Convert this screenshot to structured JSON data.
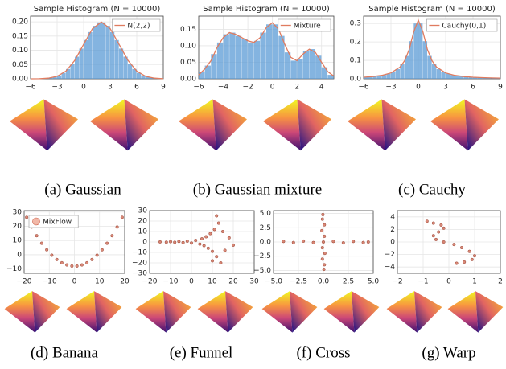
{
  "captions": [
    "(a) Gaussian",
    "(b) Gaussian mixture",
    "(c) Cauchy",
    "(d) Banana",
    "(e) Funnel",
    "(f) Cross",
    "(g) Warp"
  ],
  "chart_data": [
    {
      "type": "histogram",
      "title": "Sample Histogram (N = 10000)",
      "color": "#5b9bd5",
      "bins": [
        -4.5,
        -4,
        -3.5,
        -3,
        -2.5,
        -2,
        -1.5,
        -1,
        -0.5,
        0,
        0.5,
        1,
        1.5,
        2,
        2.5,
        3,
        3.5,
        4,
        4.5,
        5,
        5.5,
        6,
        6.5,
        7,
        7.5,
        8,
        8.5
      ],
      "values": [
        0.0015,
        0.0032,
        0.0063,
        0.0119,
        0.0208,
        0.0343,
        0.0533,
        0.0775,
        0.106,
        0.136,
        0.164,
        0.186,
        0.198,
        0.198,
        0.186,
        0.164,
        0.136,
        0.106,
        0.0775,
        0.0533,
        0.0343,
        0.0208,
        0.0119,
        0.0063,
        0.0032,
        0.0015
      ],
      "curve": {
        "name": "N(2,2)",
        "color": "#e07b5f",
        "x": [
          -6,
          -5,
          -4,
          -3,
          -2,
          -1,
          0,
          1,
          2,
          3,
          4,
          5,
          6,
          7,
          8,
          9
        ],
        "values": [
          0.0,
          0.0004,
          0.0022,
          0.0088,
          0.027,
          0.0648,
          0.121,
          0.176,
          0.1995,
          0.176,
          0.121,
          0.0648,
          0.027,
          0.0088,
          0.0022,
          0.0004
        ]
      },
      "legend": "upper right",
      "grid": true,
      "xlim": [
        -6,
        9
      ],
      "xticks": [
        {
          "value": -6,
          "label": "−6"
        },
        {
          "value": -3,
          "label": "−3"
        },
        0,
        3,
        6,
        9
      ],
      "ylim": [
        0,
        0.22
      ],
      "yticks": [
        {
          "value": 0,
          "label": "0.00"
        },
        {
          "value": 0.05,
          "label": "0.05"
        },
        {
          "value": 0.1,
          "label": "0.10"
        },
        {
          "value": 0.15,
          "label": "0.15"
        },
        {
          "value": 0.2,
          "label": "0.20"
        }
      ]
    },
    {
      "type": "histogram",
      "title": "Sample Histogram (N = 10000)",
      "color": "#5b9bd5",
      "bins": [
        -6,
        -5.5,
        -5,
        -4.5,
        -4,
        -3.5,
        -3,
        -2.5,
        -2,
        -1.5,
        -1,
        -0.5,
        0,
        0.5,
        1,
        1.5,
        2,
        2.5,
        3,
        3.5,
        4,
        4.5,
        5
      ],
      "values": [
        0.02,
        0.04,
        0.075,
        0.11,
        0.135,
        0.14,
        0.13,
        0.12,
        0.11,
        0.115,
        0.14,
        0.165,
        0.165,
        0.13,
        0.08,
        0.055,
        0.06,
        0.085,
        0.09,
        0.07,
        0.035,
        0.012
      ],
      "curve": {
        "name": "Mixture",
        "color": "#e07b5f",
        "x": [
          -6,
          -5.5,
          -5,
          -4.5,
          -4,
          -3.5,
          -3,
          -2.5,
          -2,
          -1.5,
          -1,
          -0.5,
          0,
          0.5,
          1,
          1.5,
          2,
          2.5,
          3,
          3.5,
          4,
          4.5,
          5
        ],
        "values": [
          0.012,
          0.03,
          0.055,
          0.095,
          0.125,
          0.14,
          0.135,
          0.125,
          0.115,
          0.11,
          0.125,
          0.155,
          0.17,
          0.15,
          0.105,
          0.065,
          0.055,
          0.075,
          0.09,
          0.08,
          0.05,
          0.022,
          0.008
        ]
      },
      "legend": "upper right",
      "grid": true,
      "xlim": [
        -6,
        5
      ],
      "xticks": [
        {
          "value": -6,
          "label": "−6"
        },
        {
          "value": -4,
          "label": "−4"
        },
        {
          "value": -2,
          "label": "−2"
        },
        0,
        2,
        4
      ],
      "ylim": [
        0,
        0.19
      ],
      "yticks": [
        {
          "value": 0,
          "label": "0.00"
        },
        {
          "value": 0.05,
          "label": "0.05"
        },
        {
          "value": 0.1,
          "label": "0.10"
        },
        {
          "value": 0.15,
          "label": "0.15"
        }
      ]
    },
    {
      "type": "histogram",
      "title": "Sample Histogram (N = 10000)",
      "color": "#5b9bd5",
      "bins": [
        -6,
        -5.5,
        -5,
        -4.5,
        -4,
        -3.5,
        -3,
        -2.5,
        -2,
        -1.5,
        -1,
        -0.5,
        0,
        0.5,
        1,
        1.5,
        2,
        2.5,
        3,
        3.5,
        4,
        4.5,
        5,
        5.5,
        6,
        6.5,
        7,
        7.5,
        8,
        8.5,
        9
      ],
      "values": [
        0.0093,
        0.0111,
        0.0135,
        0.0167,
        0.0211,
        0.0275,
        0.0372,
        0.0525,
        0.0784,
        0.124,
        0.204,
        0.3,
        0.3,
        0.204,
        0.124,
        0.0784,
        0.0525,
        0.0372,
        0.0275,
        0.0211,
        0.0167,
        0.0135,
        0.0111,
        0.0093,
        0.0079,
        0.0068,
        0.0059,
        0.0052,
        0.0046,
        0.0041
      ],
      "curve": {
        "name": "Cauchy(0,1)",
        "color": "#e07b5f",
        "x": [
          -6,
          -5,
          -4,
          -3,
          -2,
          -1.5,
          -1,
          -0.5,
          0,
          0.5,
          1,
          1.5,
          2,
          3,
          4,
          5,
          6,
          7,
          8,
          9
        ],
        "values": [
          0.0086,
          0.0122,
          0.0187,
          0.0318,
          0.0637,
          0.098,
          0.159,
          0.255,
          0.318,
          0.255,
          0.159,
          0.098,
          0.0637,
          0.0318,
          0.0187,
          0.0122,
          0.0086,
          0.0064,
          0.0049,
          0.0039
        ]
      },
      "legend": "upper right",
      "grid": true,
      "xlim": [
        -6,
        9
      ],
      "xticks": [
        {
          "value": -6,
          "label": "−6"
        },
        {
          "value": -3,
          "label": "−3"
        },
        0,
        3,
        6,
        9
      ],
      "ylim": [
        0,
        0.34
      ],
      "yticks": [
        {
          "value": 0,
          "label": "0.0"
        },
        {
          "value": 0.1,
          "label": "0.1"
        },
        {
          "value": 0.2,
          "label": "0.2"
        },
        {
          "value": 0.3,
          "label": "0.3"
        }
      ]
    },
    {
      "type": "scatter",
      "name": "MixFlow",
      "color": "#c8553d",
      "legend": "upper left",
      "grid": true,
      "x": [
        -19,
        -17,
        -15,
        -13,
        -11,
        -9,
        -7,
        -5,
        -3,
        -1,
        1,
        3,
        5,
        7,
        9,
        11,
        13,
        15,
        17,
        19
      ],
      "y": [
        26.3,
        19.5,
        13.4,
        8.1,
        3.5,
        -0.3,
        -3.3,
        -5.6,
        -7.1,
        -7.9,
        -7.9,
        -7.1,
        -5.6,
        -3.3,
        -0.3,
        3.5,
        8.1,
        13.4,
        19.5,
        26.3
      ],
      "xlim": [
        -20,
        20
      ],
      "xticks": [
        {
          "value": -20,
          "label": "−20"
        },
        {
          "value": -10,
          "label": "−10"
        },
        0,
        10,
        20
      ],
      "ylim": [
        -13,
        31
      ],
      "yticks": [
        {
          "value": -10,
          "label": "−10"
        },
        0,
        10,
        20,
        30
      ]
    },
    {
      "type": "scatter",
      "color": "#c8553d",
      "grid": true,
      "x": [
        -15,
        -12,
        -10,
        -8,
        -6,
        -4,
        -2,
        0,
        2,
        4,
        5,
        6,
        7,
        8,
        9,
        10,
        11,
        12,
        13,
        14,
        15,
        16,
        18,
        20,
        12,
        10
      ],
      "y": [
        0.1,
        -0.2,
        0.3,
        -0.3,
        0.5,
        -0.6,
        0.8,
        -1,
        1.5,
        -2,
        3,
        -3.5,
        5,
        -6,
        8,
        -9,
        12,
        -14,
        18,
        -20,
        10,
        -8,
        4,
        -3,
        25,
        -18
      ],
      "xlim": [
        -20,
        30
      ],
      "xticks": [
        {
          "value": -20,
          "label": "−20"
        },
        {
          "value": -10,
          "label": "−10"
        },
        0,
        10,
        20,
        30
      ],
      "ylim": [
        -30,
        30
      ],
      "yticks": [
        {
          "value": -30,
          "label": "−30"
        },
        {
          "value": -20,
          "label": "−20"
        },
        {
          "value": -10,
          "label": "−10"
        },
        0,
        10,
        20,
        30
      ]
    },
    {
      "type": "scatter",
      "color": "#c8553d",
      "grid": true,
      "x": [
        -4,
        -3,
        -2,
        -1,
        1,
        2,
        3,
        4,
        0.1,
        -0.1,
        0.15,
        -0.1,
        0.1,
        -0.15,
        0.1,
        -0.1,
        0,
        4.5,
        -0.05,
        0.05
      ],
      "y": [
        0.1,
        -0.1,
        0.15,
        -0.1,
        0.1,
        -0.15,
        0.1,
        -0.1,
        -4,
        -3,
        -2,
        -1,
        1,
        2,
        3,
        4,
        0,
        0,
        4.8,
        -4.8
      ],
      "xlim": [
        -5,
        5
      ],
      "xticks": [
        {
          "value": -5,
          "label": "−5.0"
        },
        {
          "value": -2.5,
          "label": "−2.5"
        },
        {
          "value": 0,
          "label": "0.0"
        },
        {
          "value": 2.5,
          "label": "2.5"
        },
        {
          "value": 5,
          "label": "5.0"
        }
      ],
      "ylim": [
        -5.5,
        5.5
      ],
      "yticks": [
        {
          "value": -5,
          "label": "−5.0"
        },
        {
          "value": -2.5,
          "label": "−2.5"
        },
        {
          "value": 0,
          "label": "0.0"
        },
        {
          "value": 2.5,
          "label": "2.5"
        },
        {
          "value": 5,
          "label": "5.0"
        }
      ]
    },
    {
      "type": "scatter",
      "color": "#c8553d",
      "grid": true,
      "x": [
        -0.85,
        -0.6,
        -0.3,
        -0.2,
        -0.4,
        -0.6,
        -0.5,
        -0.2,
        0.2,
        0.5,
        0.8,
        1.0,
        0.9,
        0.6,
        0.3
      ],
      "y": [
        3.3,
        3.0,
        2.7,
        2.2,
        1.6,
        1.0,
        0.4,
        0,
        -0.4,
        -0.9,
        -1.5,
        -2.2,
        -2.8,
        -3.2,
        -3.4
      ],
      "xlim": [
        -2,
        2
      ],
      "xticks": [
        {
          "value": -2,
          "label": "−2"
        },
        {
          "value": -1,
          "label": "−1"
        },
        0,
        1,
        2
      ],
      "ylim": [
        -5,
        5
      ],
      "yticks": [
        {
          "value": -4,
          "label": "−4"
        },
        {
          "value": -2,
          "label": "−2"
        },
        0,
        2,
        4
      ]
    }
  ]
}
